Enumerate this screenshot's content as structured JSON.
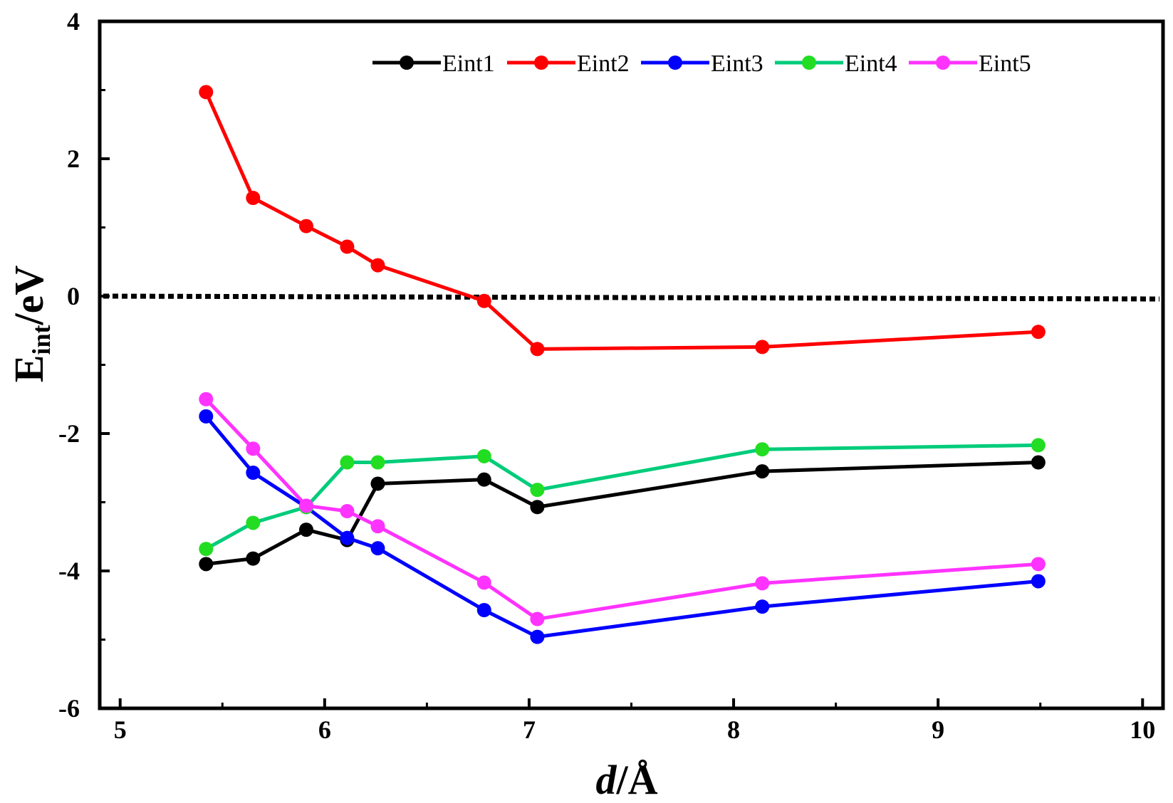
{
  "chart_data": {
    "type": "line",
    "xlabel": {
      "italic": "d",
      "rest": "/Å"
    },
    "ylabel": {
      "main": "E",
      "sub": "int",
      "rest": "/eV"
    },
    "xlim": [
      4.9,
      10.1
    ],
    "ylim": [
      -6,
      4
    ],
    "xticks": [
      5,
      6,
      7,
      8,
      9,
      10
    ],
    "yticks": [
      4,
      2,
      0,
      -2,
      -4,
      -6
    ],
    "reference_line": {
      "y": 0,
      "style": "dotted",
      "color": "#000000"
    },
    "x": [
      5.42,
      5.65,
      5.91,
      6.11,
      6.26,
      6.78,
      7.04,
      8.14,
      9.49
    ],
    "legend_position": "top-right",
    "series": [
      {
        "name": "Eint1",
        "color": "#000000",
        "values": [
          -3.9,
          -3.82,
          -3.4,
          -3.55,
          -2.73,
          -2.67,
          -3.07,
          -2.55,
          -2.42
        ]
      },
      {
        "name": "Eint2",
        "color": "#ff0000",
        "values": [
          2.97,
          1.43,
          1.02,
          0.72,
          0.45,
          -0.07,
          -0.77,
          -0.74,
          -0.52
        ]
      },
      {
        "name": "Eint3",
        "color": "#0000ff",
        "values": [
          -1.75,
          -2.57,
          -3.07,
          -3.52,
          -3.67,
          -4.57,
          -4.96,
          -4.52,
          -4.15
        ]
      },
      {
        "name": "Eint4",
        "color": "#00cc7a",
        "marker_color": "#22dd22",
        "values": [
          -3.68,
          -3.3,
          -3.07,
          -2.42,
          -2.42,
          -2.33,
          -2.82,
          -2.23,
          -2.17
        ]
      },
      {
        "name": "Eint5",
        "color": "#ff33ff",
        "values": [
          -1.5,
          -2.22,
          -3.05,
          -3.13,
          -3.35,
          -4.17,
          -4.7,
          -4.18,
          -3.9
        ]
      }
    ]
  }
}
